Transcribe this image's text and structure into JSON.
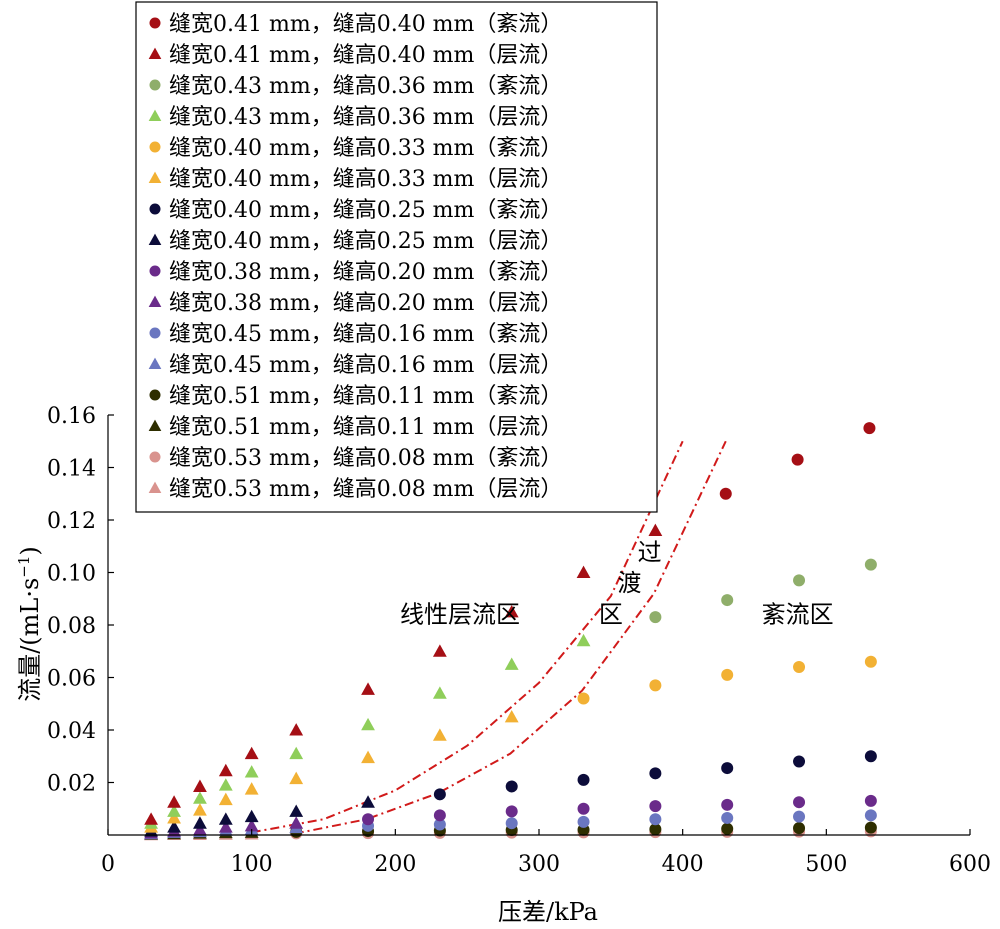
{
  "chart_data": {
    "type": "scatter",
    "xlabel": "压差/kPa",
    "ylabel_main": "流量/(mL·s",
    "ylabel_sup": "−1",
    "ylabel_close": ")",
    "xlim": [
      0,
      600
    ],
    "ylim": [
      0,
      0.16
    ],
    "xticks": [
      0,
      100,
      200,
      300,
      400,
      500,
      600
    ],
    "xtick_labels": [
      "0",
      "100",
      "200",
      "300",
      "400",
      "500",
      "600"
    ],
    "yticks": [
      0.02,
      0.04,
      0.06,
      0.08,
      0.1,
      0.12,
      0.14,
      0.16
    ],
    "ytick_labels": [
      "0.02",
      "0.04",
      "0.06",
      "0.08",
      "0.10",
      "0.12",
      "0.14",
      "0.16"
    ],
    "grid": false,
    "legend_position": "top-left",
    "regions": [
      {
        "label": "线性层流区",
        "x": 245,
        "y": 0.081
      },
      {
        "label": "过",
        "x": 377,
        "y": 0.1045
      },
      {
        "label": "渡",
        "x": 363,
        "y": 0.093
      },
      {
        "label": "区",
        "x": 350,
        "y": 0.081
      },
      {
        "label": "紊流区",
        "x": 480,
        "y": 0.081
      }
    ],
    "boundary_curves": [
      {
        "color": "#d11a1a",
        "points": [
          [
            100,
            0.001
          ],
          [
            150,
            0.006
          ],
          [
            200,
            0.017
          ],
          [
            250,
            0.034
          ],
          [
            300,
            0.058
          ],
          [
            350,
            0.091
          ],
          [
            400,
            0.15
          ]
        ]
      },
      {
        "color": "#d11a1a",
        "points": [
          [
            130,
            0.0005
          ],
          [
            180,
            0.006
          ],
          [
            230,
            0.016
          ],
          [
            280,
            0.031
          ],
          [
            330,
            0.055
          ],
          [
            380,
            0.092
          ],
          [
            430,
            0.15
          ]
        ]
      }
    ],
    "series": [
      {
        "name": "缝宽0.41 mm，缝高0.40 mm（紊流）",
        "marker": "circle",
        "color": "#a50f15",
        "points": [
          [
            430,
            0.13
          ],
          [
            480,
            0.143
          ],
          [
            530,
            0.155
          ]
        ]
      },
      {
        "name": "缝宽0.41 mm，缝高0.40 mm（层流）",
        "marker": "triangle",
        "color": "#a50f15",
        "points": [
          [
            30,
            0.006
          ],
          [
            46,
            0.0125
          ],
          [
            64,
            0.0185
          ],
          [
            82,
            0.0245
          ],
          [
            100,
            0.031
          ],
          [
            131,
            0.04
          ],
          [
            181,
            0.0555
          ],
          [
            231,
            0.07
          ],
          [
            281,
            0.085
          ],
          [
            331,
            0.1
          ],
          [
            381,
            0.116
          ]
        ]
      },
      {
        "name": "缝宽0.43 mm，缝高0.36 mm（紊流）",
        "marker": "circle",
        "color": "#8fae6a",
        "points": [
          [
            381,
            0.083
          ],
          [
            431,
            0.0895
          ],
          [
            481,
            0.097
          ],
          [
            531,
            0.103
          ]
        ]
      },
      {
        "name": "缝宽0.43 mm，缝高0.36 mm（层流）",
        "marker": "triangle",
        "color": "#8fce5a",
        "points": [
          [
            30,
            0.0045
          ],
          [
            46,
            0.009
          ],
          [
            64,
            0.014
          ],
          [
            82,
            0.019
          ],
          [
            100,
            0.024
          ],
          [
            131,
            0.031
          ],
          [
            181,
            0.042
          ],
          [
            231,
            0.054
          ],
          [
            281,
            0.065
          ],
          [
            331,
            0.074
          ]
        ]
      },
      {
        "name": "缝宽0.40 mm，缝高0.33 mm（紊流）",
        "marker": "circle",
        "color": "#f2b134",
        "points": [
          [
            331,
            0.052
          ],
          [
            381,
            0.057
          ],
          [
            431,
            0.061
          ],
          [
            481,
            0.064
          ],
          [
            531,
            0.066
          ]
        ]
      },
      {
        "name": "缝宽0.40 mm，缝高0.33 mm（层流）",
        "marker": "triangle",
        "color": "#f2b134",
        "points": [
          [
            30,
            0.003
          ],
          [
            46,
            0.0065
          ],
          [
            64,
            0.0095
          ],
          [
            82,
            0.0135
          ],
          [
            100,
            0.0175
          ],
          [
            131,
            0.0215
          ],
          [
            181,
            0.0295
          ],
          [
            231,
            0.038
          ],
          [
            281,
            0.045
          ]
        ]
      },
      {
        "name": "缝宽0.40 mm，缝高0.25 mm（紊流）",
        "marker": "circle",
        "color": "#0c0c3a",
        "points": [
          [
            231,
            0.0155
          ],
          [
            281,
            0.0185
          ],
          [
            331,
            0.021
          ],
          [
            381,
            0.0235
          ],
          [
            431,
            0.0255
          ],
          [
            481,
            0.028
          ],
          [
            531,
            0.03
          ]
        ]
      },
      {
        "name": "缝宽0.40 mm，缝高0.25 mm（层流）",
        "marker": "triangle",
        "color": "#0c0c3a",
        "points": [
          [
            30,
            0.0015
          ],
          [
            46,
            0.003
          ],
          [
            64,
            0.0045
          ],
          [
            82,
            0.006
          ],
          [
            100,
            0.007
          ],
          [
            131,
            0.009
          ],
          [
            181,
            0.0125
          ]
        ]
      },
      {
        "name": "缝宽0.38 mm，缝高0.20 mm（紊流）",
        "marker": "circle",
        "color": "#6a2b8a",
        "points": [
          [
            181,
            0.006
          ],
          [
            231,
            0.0075
          ],
          [
            281,
            0.009
          ],
          [
            331,
            0.01
          ],
          [
            381,
            0.011
          ],
          [
            431,
            0.0115
          ],
          [
            481,
            0.0125
          ],
          [
            531,
            0.013
          ]
        ]
      },
      {
        "name": "缝宽0.38 mm，缝高0.20 mm（层流）",
        "marker": "triangle",
        "color": "#6a2b8a",
        "points": [
          [
            30,
            0.0008
          ],
          [
            46,
            0.0015
          ],
          [
            64,
            0.002
          ],
          [
            82,
            0.003
          ],
          [
            100,
            0.0035
          ],
          [
            131,
            0.0045
          ]
        ]
      },
      {
        "name": "缝宽0.45 mm，缝高0.16 mm（紊流）",
        "marker": "circle",
        "color": "#6a76c0",
        "points": [
          [
            181,
            0.0035
          ],
          [
            231,
            0.004
          ],
          [
            281,
            0.0045
          ],
          [
            331,
            0.005
          ],
          [
            381,
            0.006
          ],
          [
            431,
            0.0065
          ],
          [
            481,
            0.007
          ],
          [
            531,
            0.0075
          ]
        ]
      },
      {
        "name": "缝宽0.45 mm，缝高0.16 mm（层流）",
        "marker": "triangle",
        "color": "#6a76c0",
        "points": [
          [
            30,
            0.0005
          ],
          [
            46,
            0.001
          ],
          [
            64,
            0.0013
          ],
          [
            82,
            0.0018
          ],
          [
            100,
            0.0022
          ],
          [
            131,
            0.0028
          ]
        ]
      },
      {
        "name": "缝宽0.51 mm，缝高0.11 mm（紊流）",
        "marker": "circle",
        "color": "#2e2e00",
        "points": [
          [
            131,
            0.0012
          ],
          [
            181,
            0.0015
          ],
          [
            231,
            0.0017
          ],
          [
            281,
            0.0019
          ],
          [
            331,
            0.002
          ],
          [
            381,
            0.0022
          ],
          [
            431,
            0.0024
          ],
          [
            481,
            0.0026
          ],
          [
            531,
            0.0028
          ]
        ]
      },
      {
        "name": "缝宽0.51 mm，缝高0.11 mm（层流）",
        "marker": "triangle",
        "color": "#2e2e00",
        "points": [
          [
            30,
            0.0003
          ],
          [
            46,
            0.0005
          ],
          [
            64,
            0.0007
          ],
          [
            82,
            0.0009
          ],
          [
            100,
            0.001
          ]
        ]
      },
      {
        "name": "缝宽0.53 mm，缝高0.08 mm（紊流）",
        "marker": "circle",
        "color": "#d9938e",
        "points": [
          [
            131,
            0.0006
          ],
          [
            181,
            0.0007
          ],
          [
            231,
            0.0008
          ],
          [
            281,
            0.0009
          ],
          [
            331,
            0.001
          ],
          [
            381,
            0.0011
          ],
          [
            431,
            0.0012
          ],
          [
            481,
            0.0013
          ],
          [
            531,
            0.0014
          ]
        ]
      },
      {
        "name": "缝宽0.53 mm，缝高0.08 mm（层流）",
        "marker": "triangle",
        "color": "#d9938e",
        "points": [
          [
            30,
            0.0001
          ],
          [
            46,
            0.0002
          ],
          [
            64,
            0.0002
          ],
          [
            82,
            0.0003
          ],
          [
            100,
            0.0004
          ]
        ]
      }
    ]
  }
}
